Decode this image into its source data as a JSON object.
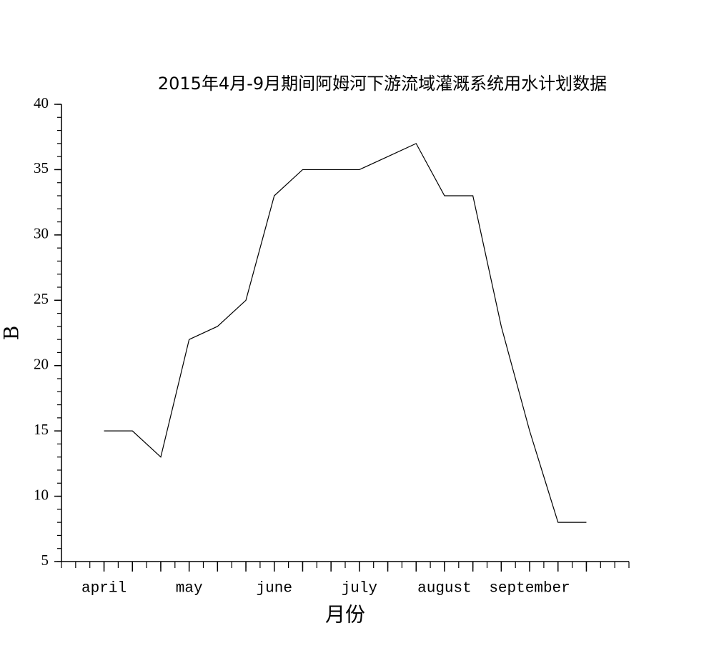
{
  "chart_data": {
    "type": "line",
    "title": "2015年4月-9月期间阿姆河下游流域灌溉系统用水计划数据",
    "x_label": "月份",
    "y_label": "B",
    "categories": [
      "april",
      null,
      null,
      "may",
      null,
      null,
      "june",
      null,
      null,
      "july",
      null,
      null,
      "august",
      null,
      null,
      "september",
      null,
      null
    ],
    "series": [
      {
        "name": "B",
        "color": "#000000",
        "values": [
          15,
          15,
          13,
          22,
          23,
          25,
          33,
          35,
          35,
          35,
          36,
          37,
          33,
          33,
          23,
          15,
          8,
          8
        ]
      }
    ],
    "ylim": [
      5,
      40
    ],
    "yticks": [
      5,
      10,
      15,
      20,
      25,
      30,
      35,
      40
    ],
    "grid": false
  }
}
